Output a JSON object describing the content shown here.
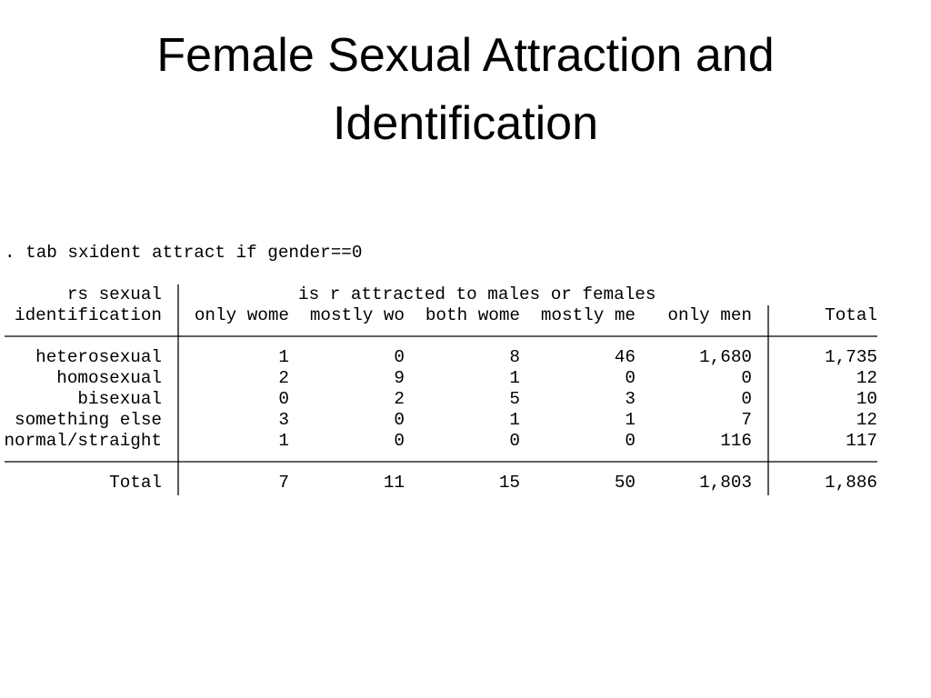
{
  "title": "Female Sexual Attraction and Identification",
  "command": ". tab sxident attract if gender==0",
  "table": {
    "row_header": [
      "rs sexual",
      "identification"
    ],
    "column_group": "is r attracted to males or females",
    "columns": [
      "only wome",
      "mostly wo",
      "both wome",
      "mostly me",
      "only men",
      "Total"
    ],
    "rows": [
      {
        "label": "heterosexual",
        "cells": [
          "1",
          "0",
          "8",
          "46",
          "1,680",
          "1,735"
        ]
      },
      {
        "label": "homosexual",
        "cells": [
          "2",
          "9",
          "1",
          "0",
          "0",
          "12"
        ]
      },
      {
        "label": "bisexual",
        "cells": [
          "0",
          "2",
          "5",
          "3",
          "0",
          "10"
        ]
      },
      {
        "label": "something else",
        "cells": [
          "3",
          "0",
          "1",
          "1",
          "7",
          "12"
        ]
      },
      {
        "label": "normal/straight",
        "cells": [
          "1",
          "0",
          "0",
          "0",
          "116",
          "117"
        ]
      }
    ],
    "total": {
      "label": "Total",
      "cells": [
        "7",
        "11",
        "15",
        "50",
        "1,803",
        "1,886"
      ]
    }
  }
}
